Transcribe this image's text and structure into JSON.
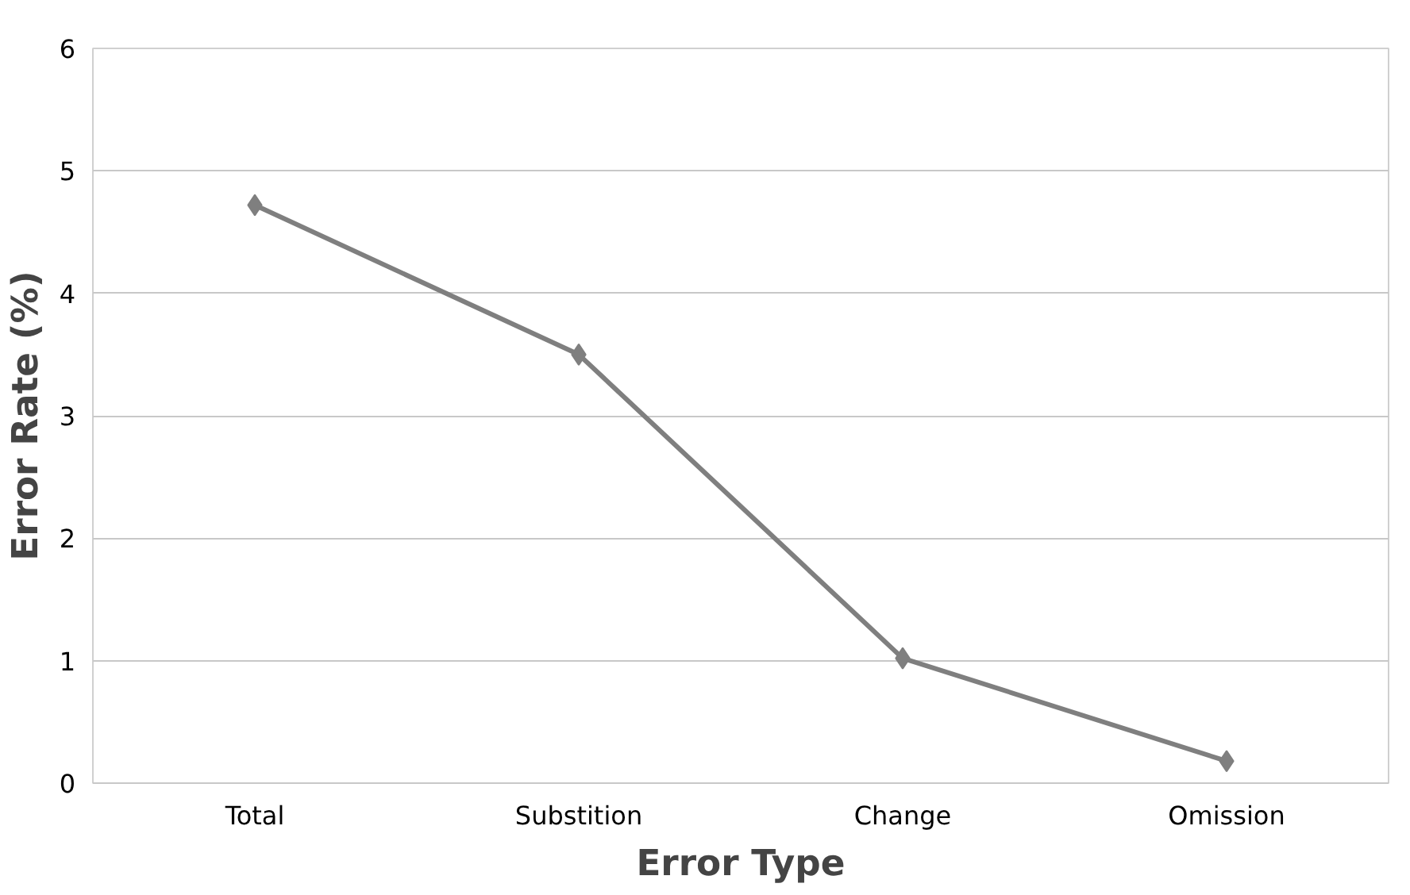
{
  "chart_data": {
    "type": "line",
    "xlabel": "Error Type",
    "ylabel": "Error Rate (%)",
    "categories": [
      "Total",
      "Substition",
      "Change",
      "Omission"
    ],
    "series": [
      {
        "color": "#7f7f7f",
        "values": [
          4.72,
          3.5,
          1.02,
          0.18
        ]
      }
    ],
    "ylim": [
      0,
      6
    ],
    "yticks": [
      0,
      1,
      2,
      3,
      4,
      5,
      6
    ],
    "grid": "y",
    "marker": "diamond",
    "line_style": "solid"
  }
}
